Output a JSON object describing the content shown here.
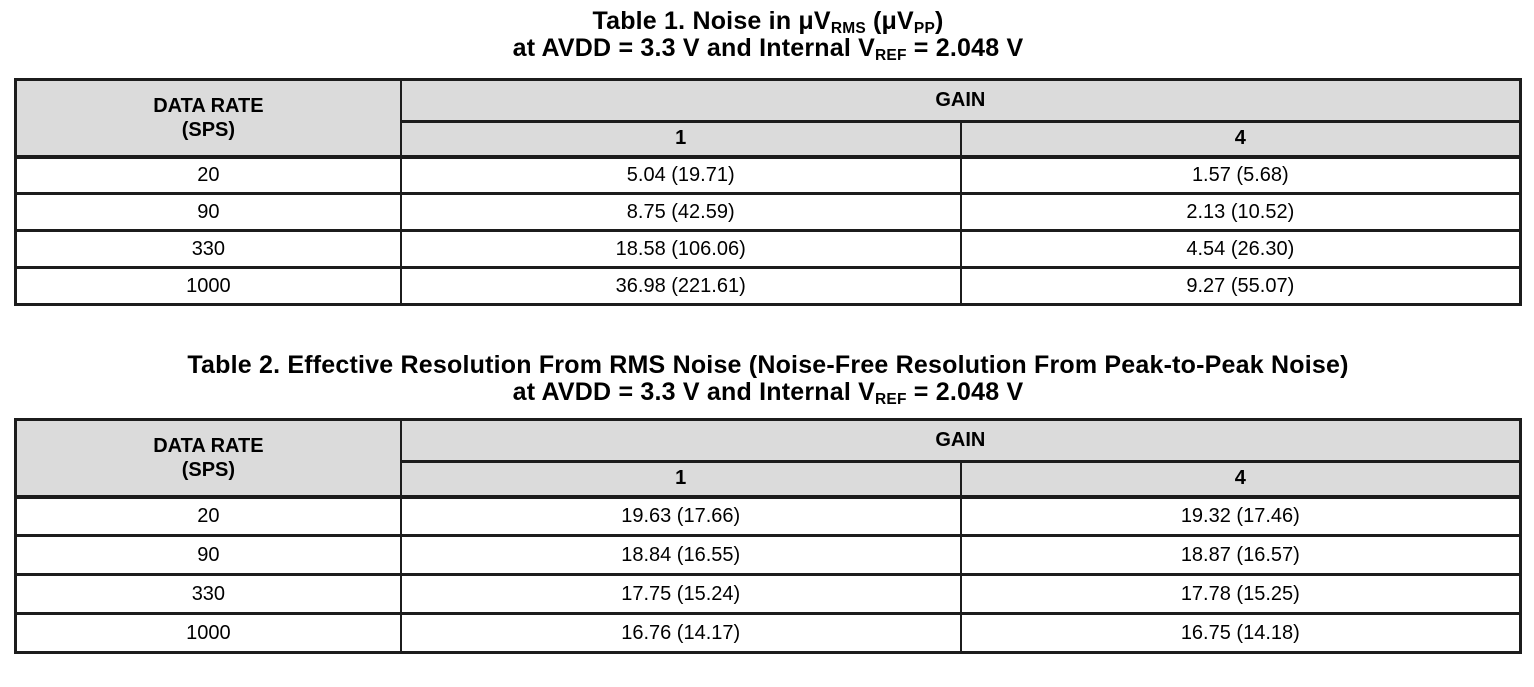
{
  "colors": {
    "header_bg": "#dbdbdb",
    "line": "#1c1c1c",
    "text": "#000000",
    "page_bg": "#ffffff"
  },
  "table1": {
    "title": {
      "line1_pre": "Table 1. Noise in μV",
      "line1_sub1": "RMS",
      "line1_mid": " (μV",
      "line1_sub2": "PP",
      "line1_post": ")",
      "line2_pre": "at AVDD = 3.3 V and Internal V",
      "line2_sub": "REF",
      "line2_post": " = 2.048 V"
    },
    "headers": {
      "rate_line1": "DATA RATE",
      "rate_line2": "(SPS)",
      "gain": "GAIN",
      "gain_col1": "1",
      "gain_col2": "4"
    },
    "rows": [
      {
        "rate": "20",
        "gain1": "5.04 (19.71)",
        "gain4": "1.57 (5.68)"
      },
      {
        "rate": "90",
        "gain1": "8.75 (42.59)",
        "gain4": "2.13 (10.52)"
      },
      {
        "rate": "330",
        "gain1": "18.58 (106.06)",
        "gain4": "4.54 (26.30)"
      },
      {
        "rate": "1000",
        "gain1": "36.98 (221.61)",
        "gain4": "9.27 (55.07)"
      }
    ]
  },
  "table2": {
    "title": {
      "line1": "Table 2. Effective Resolution From RMS Noise (Noise-Free Resolution From Peak-to-Peak Noise)",
      "line2_pre": "at AVDD = 3.3 V and Internal V",
      "line2_sub": "REF",
      "line2_post": " = 2.048 V"
    },
    "headers": {
      "rate_line1": "DATA RATE",
      "rate_line2": "(SPS)",
      "gain": "GAIN",
      "gain_col1": "1",
      "gain_col2": "4"
    },
    "rows": [
      {
        "rate": "20",
        "gain1": "19.63 (17.66)",
        "gain4": "19.32 (17.46)"
      },
      {
        "rate": "90",
        "gain1": "18.84 (16.55)",
        "gain4": "18.87 (16.57)"
      },
      {
        "rate": "330",
        "gain1": "17.75 (15.24)",
        "gain4": "17.78 (15.25)"
      },
      {
        "rate": "1000",
        "gain1": "16.76 (14.17)",
        "gain4": "16.75 (14.18)"
      }
    ]
  }
}
